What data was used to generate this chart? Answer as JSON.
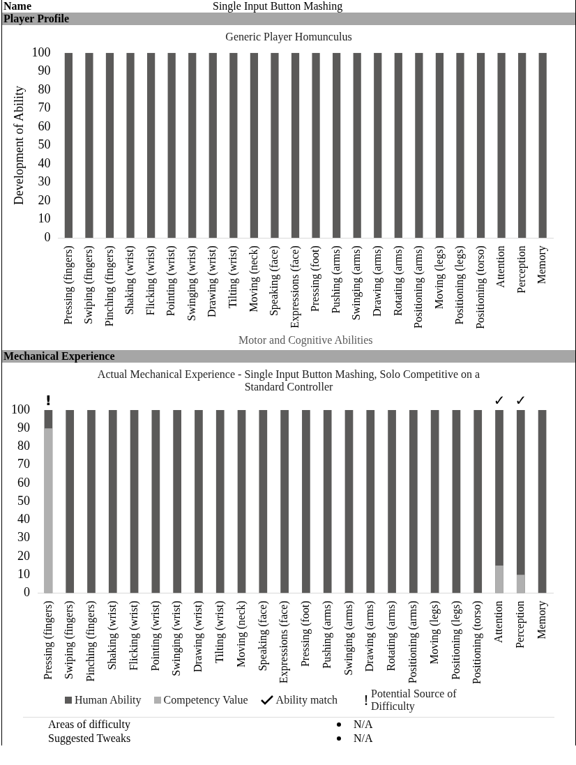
{
  "chart_data": [
    {
      "type": "bar",
      "title": "Generic Player Homunculus",
      "xlabel": "Motor and Cognitive Abilities",
      "ylabel": "Development of Ability",
      "categories": [
        "Pressing (fingers)",
        "Swiping (fingers)",
        "Pinching (fingers)",
        "Shaking (wrist)",
        "Flicking (wrist)",
        "Pointing (wrist)",
        "Swinging (wrist)",
        "Drawing (wrist)",
        "Tilting (wrist)",
        "Moving (neck)",
        "Speaking (face)",
        "Expressions (face)",
        "Pressing (foot)",
        "Pushing (arms)",
        "Swinging (arms)",
        "Drawing (arms)",
        "Rotating (arms)",
        "Positioning (arms)",
        "Moving (legs)",
        "Positioning (legs)",
        "Positioning (torso)",
        "Attention",
        "Perception",
        "Memory"
      ],
      "values": [
        100,
        100,
        100,
        100,
        100,
        100,
        100,
        100,
        100,
        100,
        100,
        100,
        100,
        100,
        100,
        100,
        100,
        100,
        100,
        100,
        100,
        100,
        100,
        100
      ],
      "color": "#5b5a59",
      "ylim": [
        0,
        100
      ],
      "yticks": [
        0,
        10,
        20,
        30,
        40,
        50,
        60,
        70,
        80,
        90,
        100
      ],
      "grid": false,
      "legend": false,
      "annotations": [
        "Name",
        "Single Input Button Mashing",
        "Player Profile"
      ]
    },
    {
      "type": "bar",
      "title": "Actual Mechanical Experience - Single Input Button Mashing, Solo Competitive on a Standard Controller",
      "categories": [
        "Pressing (fingers)",
        "Swiping (fingers)",
        "Pinching (fingers)",
        "Shaking (wrist)",
        "Flicking (wrist)",
        "Pointing (wrist)",
        "Swinging (wrist)",
        "Drawing (wrist)",
        "Tilting (wrist)",
        "Moving (neck)",
        "Speaking (face)",
        "Expressions (face)",
        "Pressing (foot)",
        "Pushing (arms)",
        "Swinging (arms)",
        "Drawing (arms)",
        "Rotating (arms)",
        "Positioning (arms)",
        "Moving (legs)",
        "Positioning (legs)",
        "Positioning (torso)",
        "Attention",
        "Perception",
        "Memory"
      ],
      "series": [
        {
          "name": "Human Ability",
          "color": "#5b5a59",
          "values": [
            100,
            100,
            100,
            100,
            100,
            100,
            100,
            100,
            100,
            100,
            100,
            100,
            100,
            100,
            100,
            100,
            100,
            100,
            100,
            100,
            100,
            100,
            100,
            100
          ]
        },
        {
          "name": "Competency Value",
          "color": "#b0b0b0",
          "values": [
            90,
            0,
            0,
            0,
            0,
            0,
            0,
            0,
            0,
            0,
            0,
            0,
            0,
            0,
            0,
            0,
            0,
            0,
            0,
            0,
            0,
            15,
            10,
            0
          ]
        }
      ],
      "ylim": [
        0,
        100
      ],
      "yticks": [
        0,
        10,
        20,
        30,
        40,
        50,
        60,
        70,
        80,
        90,
        100
      ],
      "grid": false,
      "legend": "bottom",
      "annotations": [
        "Mechanical Experience",
        "Ability match",
        "Potential Source of Difficulty",
        "Areas of difficulty",
        "N/A",
        "Suggested Tweaks",
        "N/A",
        {
          "text": "!",
          "x": "Pressing (fingers)",
          "y": 100
        },
        {
          "text": "✓",
          "x": "Attention",
          "y": 100
        },
        {
          "text": "✓",
          "x": "Perception",
          "y": 100
        }
      ]
    }
  ]
}
